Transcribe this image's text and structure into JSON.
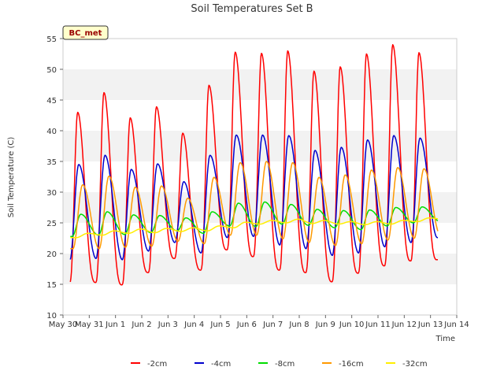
{
  "chart_data": {
    "type": "line",
    "title": "Soil Temperatures Set B",
    "xlabel": "Time",
    "ylabel": "Soil Temperature (C)",
    "station_badge": "BC_met",
    "ylim": [
      10,
      55
    ],
    "yticks": [
      10,
      15,
      20,
      25,
      30,
      35,
      40,
      45,
      50,
      55
    ],
    "xlim": [
      0,
      15
    ],
    "x_ticks": [
      {
        "x": 0,
        "label": "May 30"
      },
      {
        "x": 1,
        "label": "May 31"
      },
      {
        "x": 2,
        "label": "Jun 1"
      },
      {
        "x": 3,
        "label": "Jun 2"
      },
      {
        "x": 4,
        "label": "Jun 3"
      },
      {
        "x": 5,
        "label": "Jun 4"
      },
      {
        "x": 6,
        "label": "Jun 5"
      },
      {
        "x": 7,
        "label": "Jun 6"
      },
      {
        "x": 8,
        "label": "Jun 7"
      },
      {
        "x": 9,
        "label": "Jun 8"
      },
      {
        "x": 10,
        "label": "Jun 9"
      },
      {
        "x": 11,
        "label": "Jun 10"
      },
      {
        "x": 12,
        "label": "Jun 11"
      },
      {
        "x": 13,
        "label": "Jun 12"
      },
      {
        "x": 14,
        "label": "Jun 13"
      },
      {
        "x": 15,
        "label": "Jun 14"
      }
    ],
    "x_unit": "days since May 30 00:00",
    "grid": "horizontal bands",
    "legend_position": "bottom",
    "series": [
      {
        "name": "-2cm",
        "color": "#ff0000",
        "daily_min": [
          15.1,
          15.3,
          14.9,
          16.9,
          19.2,
          17.3,
          20.6,
          19.5,
          17.3,
          16.9,
          15.4,
          16.8,
          18.0,
          18.8,
          19.0
        ],
        "daily_max": [
          43.0,
          46.2,
          42.1,
          43.9,
          39.6,
          47.4,
          52.8,
          52.6,
          53.0,
          49.7,
          50.4,
          52.5,
          54.0,
          52.7
        ]
      },
      {
        "name": "-4cm",
        "color": "#0000cc",
        "daily_min": [
          18.9,
          19.2,
          19.0,
          20.4,
          21.8,
          20.1,
          22.6,
          22.8,
          21.4,
          20.8,
          19.7,
          20.1,
          21.1,
          21.8,
          22.6
        ],
        "daily_max": [
          34.5,
          36.0,
          33.7,
          34.6,
          31.7,
          36.0,
          39.3,
          39.3,
          39.2,
          36.8,
          37.3,
          38.5,
          39.2,
          38.8
        ]
      },
      {
        "name": "-8cm",
        "color": "#00dd00",
        "daily_min": [
          22.8,
          23.0,
          23.1,
          23.4,
          23.7,
          23.3,
          24.5,
          24.4,
          24.8,
          24.6,
          24.2,
          23.9,
          24.5,
          25.0,
          25.3
        ],
        "daily_max": [
          26.4,
          26.8,
          26.3,
          26.2,
          25.8,
          26.8,
          28.2,
          28.4,
          28.0,
          27.2,
          27.0,
          27.1,
          27.5,
          27.6
        ]
      },
      {
        "name": "-16cm",
        "color": "#ff9900",
        "daily_min": [
          20.8,
          20.8,
          21.0,
          21.2,
          22.0,
          21.6,
          23.0,
          23.0,
          22.4,
          21.8,
          21.3,
          21.6,
          22.2,
          22.5,
          23.0
        ],
        "daily_max": [
          31.2,
          32.6,
          30.8,
          31.0,
          29.0,
          32.4,
          34.8,
          35.0,
          34.8,
          32.4,
          32.8,
          33.6,
          34.0,
          33.8
        ]
      },
      {
        "name": "-32cm",
        "color": "#ffee00",
        "daily_min": [
          22.6,
          23.0,
          23.3,
          23.4,
          23.6,
          23.7,
          24.2,
          24.8,
          25.0,
          24.9,
          24.8,
          24.7,
          24.8,
          25.2,
          25.6
        ],
        "daily_max": [
          23.3,
          23.7,
          24.0,
          24.1,
          24.2,
          24.5,
          25.1,
          25.4,
          25.6,
          25.4,
          25.2,
          25.2,
          25.4,
          25.8
        ]
      }
    ]
  }
}
